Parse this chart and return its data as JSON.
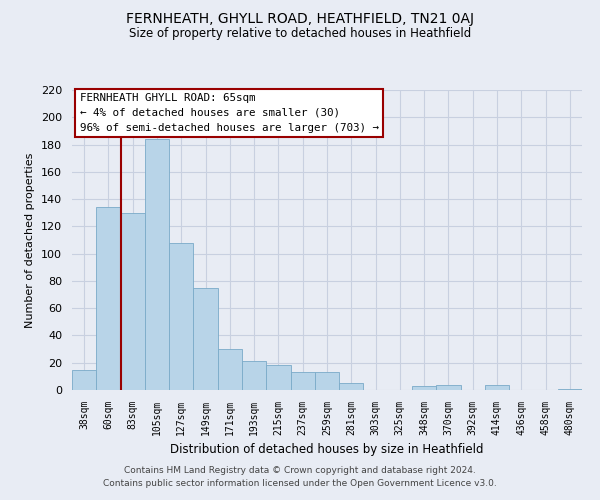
{
  "title": "FERNHEATH, GHYLL ROAD, HEATHFIELD, TN21 0AJ",
  "subtitle": "Size of property relative to detached houses in Heathfield",
  "xlabel": "Distribution of detached houses by size in Heathfield",
  "ylabel": "Number of detached properties",
  "categories": [
    "38sqm",
    "60sqm",
    "83sqm",
    "105sqm",
    "127sqm",
    "149sqm",
    "171sqm",
    "193sqm",
    "215sqm",
    "237sqm",
    "259sqm",
    "281sqm",
    "303sqm",
    "325sqm",
    "348sqm",
    "370sqm",
    "392sqm",
    "414sqm",
    "436sqm",
    "458sqm",
    "480sqm"
  ],
  "values": [
    15,
    134,
    130,
    184,
    108,
    75,
    30,
    21,
    18,
    13,
    13,
    5,
    0,
    0,
    3,
    4,
    0,
    4,
    0,
    0,
    1
  ],
  "bar_color": "#b8d4e8",
  "bar_edge_color": "#7aaac8",
  "property_line_x": 1.5,
  "property_line_color": "#990000",
  "ylim": [
    0,
    220
  ],
  "yticks": [
    0,
    20,
    40,
    60,
    80,
    100,
    120,
    140,
    160,
    180,
    200,
    220
  ],
  "annotation_title": "FERNHEATH GHYLL ROAD: 65sqm",
  "annotation_line1": "← 4% of detached houses are smaller (30)",
  "annotation_line2": "96% of semi-detached houses are larger (703) →",
  "footer_line1": "Contains HM Land Registry data © Crown copyright and database right 2024.",
  "footer_line2": "Contains public sector information licensed under the Open Government Licence v3.0.",
  "bg_color": "#e8ecf4",
  "plot_bg_color": "#e8ecf4",
  "grid_color": "#c8d0e0"
}
